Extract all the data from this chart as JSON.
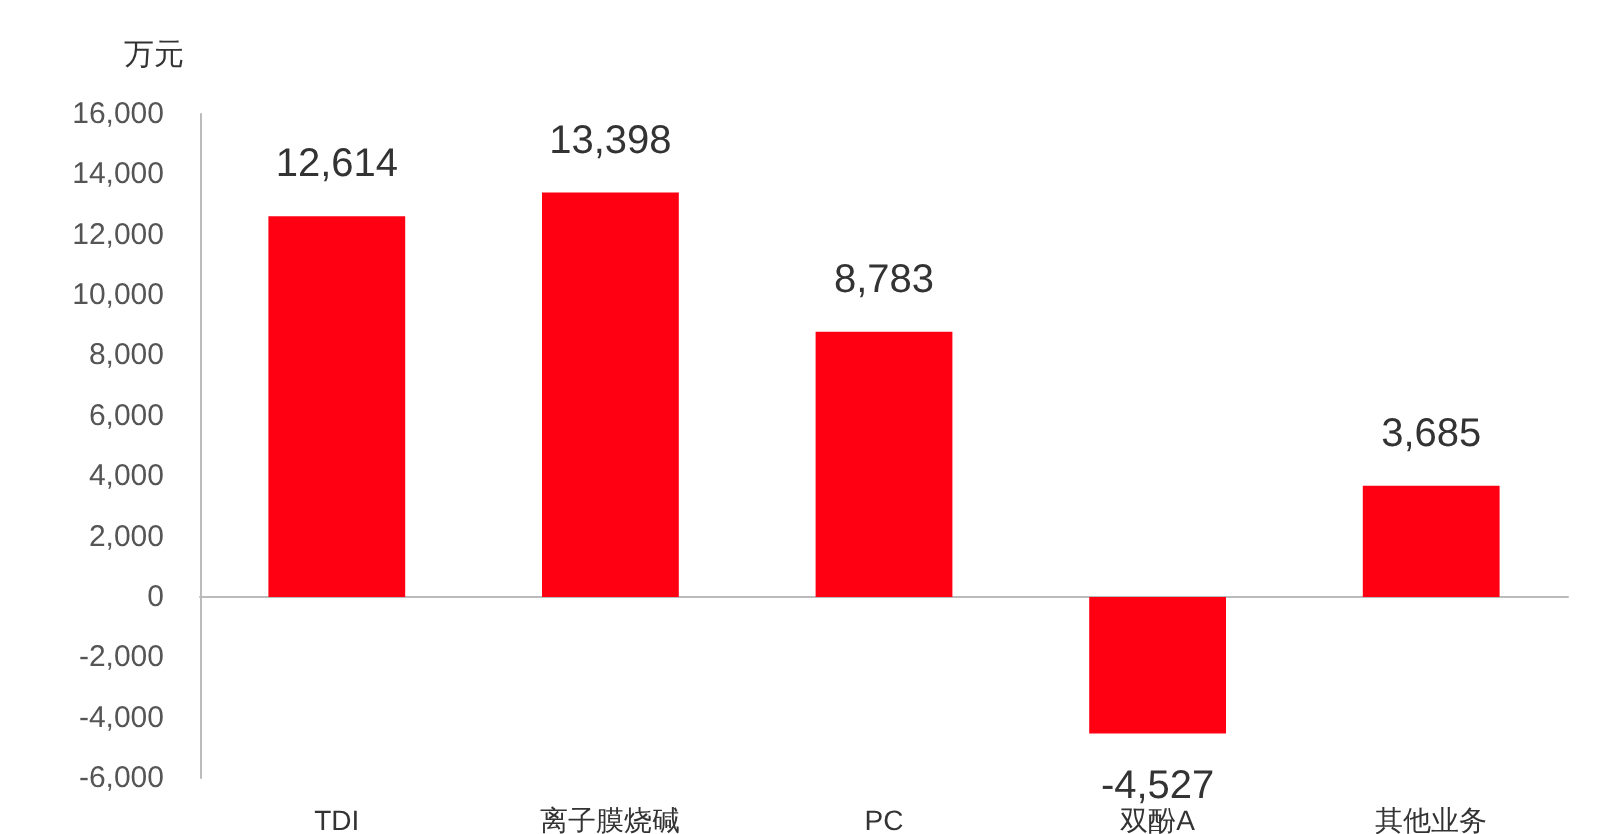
{
  "chart_data": {
    "type": "bar",
    "ylabel": "万元",
    "categories": [
      "TDI",
      "离子膜烧碱",
      "PC",
      "双酚A",
      "其他业务"
    ],
    "values": [
      12614,
      13398,
      8783,
      -4527,
      3685
    ],
    "color": "#ff0013",
    "value_labels": [
      "12,614",
      "13,398",
      "8,783",
      "-4,527",
      "3,685"
    ],
    "ylim": [
      -6000,
      16000
    ],
    "yticks": [
      {
        "value": -6000,
        "label": "-6,000"
      },
      {
        "value": -4000,
        "label": "-4,000"
      },
      {
        "value": -2000,
        "label": "-2,000"
      },
      0,
      {
        "value": 2000,
        "label": "2,000"
      },
      {
        "value": 4000,
        "label": "4,000"
      },
      {
        "value": 6000,
        "label": "6,000"
      },
      {
        "value": 8000,
        "label": "8,000"
      },
      {
        "value": 10000,
        "label": "10,000"
      },
      {
        "value": 12000,
        "label": "12,000"
      },
      {
        "value": 14000,
        "label": "14,000"
      },
      {
        "value": 16000,
        "label": "16,000"
      }
    ]
  }
}
